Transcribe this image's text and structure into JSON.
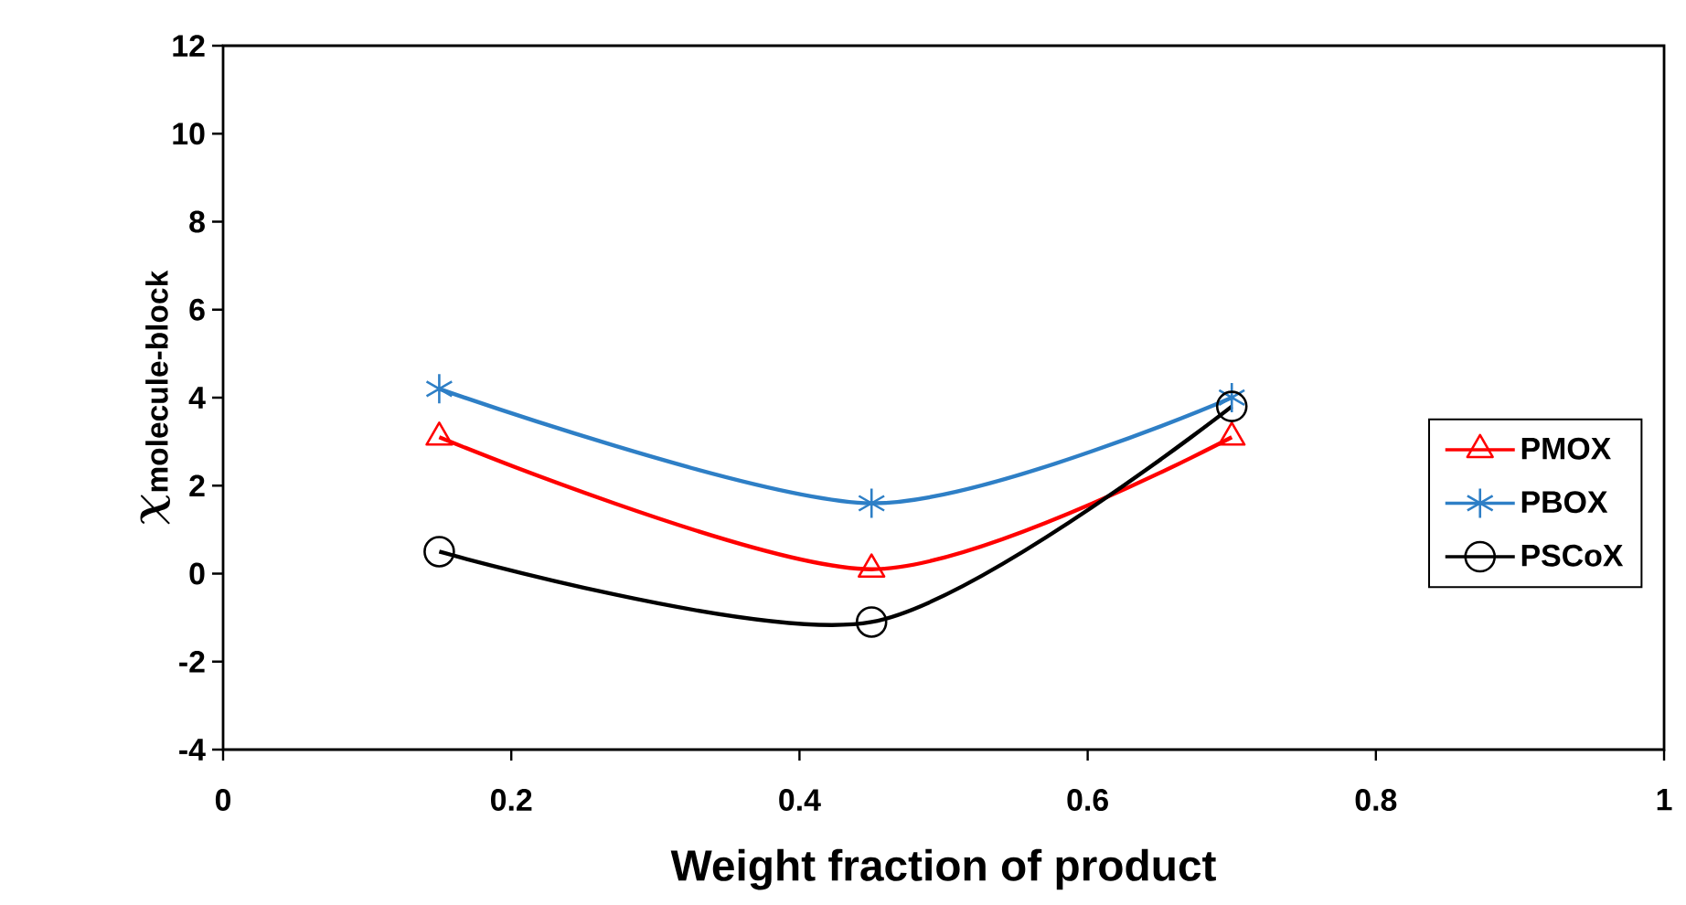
{
  "chart_data": {
    "type": "line",
    "xlabel": "Weight fraction of product",
    "ylabel": "\\boldsymbol{\\chi}_{\\textbf{molecule-block}}",
    "x": [
      0.15,
      0.45,
      0.7
    ],
    "series": [
      {
        "name": "PMOX",
        "color": "#ff0000",
        "marker": "triangle",
        "values": [
          3.1,
          0.1,
          3.1
        ]
      },
      {
        "name": "PBOX",
        "color": "#2e7fc6",
        "marker": "cross",
        "values": [
          4.2,
          1.6,
          4.0
        ]
      },
      {
        "name": "PSCoX",
        "color": "#000000",
        "marker": "circle",
        "values": [
          0.5,
          -1.1,
          3.8
        ]
      }
    ],
    "xlim": [
      0,
      1
    ],
    "xticks": [
      0,
      0.2,
      0.4,
      0.6,
      0.8,
      1
    ],
    "ylim": [
      -4,
      12
    ],
    "yticks": [
      -4,
      -2,
      0,
      2,
      4,
      6,
      8,
      10,
      12
    ],
    "grid": false,
    "legend": "right",
    "line_style": "solid"
  }
}
